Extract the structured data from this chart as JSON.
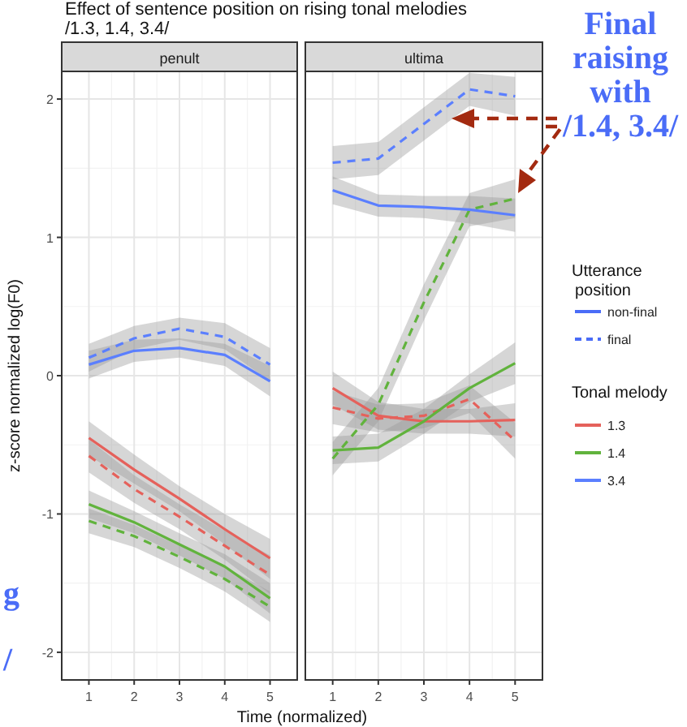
{
  "chart_data": [
    {
      "type": "line",
      "title": "penult",
      "xlabel": "Time (normalized)",
      "ylabel": "z-score normalized log(F0)",
      "annotations": [
        "Effect of sentence position on rising tonal melodies",
        "/1.3, 1.4, 3.4/",
        "g",
        "/"
      ],
      "x": [
        1,
        2,
        3,
        4,
        5
      ],
      "xlim": [
        0.4,
        5.6
      ],
      "xticks": [
        1,
        2,
        3,
        4,
        5
      ],
      "ylim": [
        -2.2,
        2.2
      ],
      "yticks": [
        -2,
        -1,
        0,
        1,
        2
      ],
      "grid": true,
      "legend": "right",
      "legend_title": "Tonal melody",
      "marker": "none",
      "series": [
        {
          "name": "1.3",
          "color": "#e5615b",
          "line_style": "solid",
          "values": [
            -0.45,
            -0.68,
            -0.89,
            -1.11,
            -1.32
          ],
          "lower": [
            -0.58,
            -0.78,
            -0.98,
            -1.22,
            -1.47
          ],
          "upper": [
            -0.33,
            -0.57,
            -0.8,
            -1.0,
            -1.18
          ]
        },
        {
          "color": "#e5615b",
          "line_style": "dashed",
          "values": [
            -0.58,
            -0.82,
            -1.02,
            -1.23,
            -1.44
          ],
          "lower": [
            -0.7,
            -0.92,
            -1.11,
            -1.33,
            -1.58
          ],
          "upper": [
            -0.46,
            -0.72,
            -0.93,
            -1.12,
            -1.3
          ]
        },
        {
          "name": "1.4",
          "color": "#61b33d",
          "line_style": "solid",
          "values": [
            -0.93,
            -1.06,
            -1.22,
            -1.38,
            -1.61
          ],
          "lower": [
            -1.03,
            -1.14,
            -1.3,
            -1.47,
            -1.72
          ],
          "upper": [
            -0.83,
            -0.98,
            -1.14,
            -1.29,
            -1.5
          ]
        },
        {
          "color": "#61b33d",
          "line_style": "dashed",
          "values": [
            -1.05,
            -1.16,
            -1.31,
            -1.47,
            -1.67
          ],
          "lower": [
            -1.14,
            -1.24,
            -1.39,
            -1.56,
            -1.78
          ],
          "upper": [
            -0.96,
            -1.08,
            -1.23,
            -1.38,
            -1.56
          ]
        },
        {
          "name": "3.4",
          "color": "#5b7fff",
          "line_style": "solid",
          "values": [
            0.08,
            0.18,
            0.2,
            0.15,
            -0.04
          ],
          "lower": [
            -0.02,
            0.1,
            0.13,
            0.07,
            -0.15
          ],
          "upper": [
            0.18,
            0.26,
            0.27,
            0.23,
            0.07
          ]
        },
        {
          "color": "#5b7fff",
          "line_style": "dashed",
          "values": [
            0.13,
            0.27,
            0.34,
            0.28,
            0.08
          ],
          "lower": [
            0.03,
            0.19,
            0.26,
            0.19,
            -0.04
          ],
          "upper": [
            0.23,
            0.36,
            0.42,
            0.38,
            0.2
          ]
        }
      ]
    },
    {
      "type": "line",
      "title": "ultima",
      "annotations": [
        "Final raising with /1.4, 3.4/",
        "Utterance position",
        "non-final",
        "final"
      ],
      "x": [
        1,
        2,
        3,
        4,
        5
      ],
      "xlim": [
        0.4,
        5.6
      ],
      "xticks": [
        1,
        2,
        3,
        4,
        5
      ],
      "ylim": [
        -2.2,
        2.2
      ],
      "yticks": [
        -2,
        -1,
        0,
        1,
        2
      ],
      "tick_labels": "x",
      "grid": true,
      "marker": "none",
      "series": [
        {
          "color": "#e5615b",
          "line_style": "solid",
          "values": [
            -0.09,
            -0.29,
            -0.33,
            -0.33,
            -0.32
          ],
          "lower": [
            -0.21,
            -0.39,
            -0.42,
            -0.42,
            -0.44
          ],
          "upper": [
            0.03,
            -0.19,
            -0.24,
            -0.24,
            -0.2
          ]
        },
        {
          "color": "#e5615b",
          "line_style": "dashed",
          "values": [
            -0.23,
            -0.31,
            -0.29,
            -0.17,
            -0.47
          ],
          "lower": [
            -0.35,
            -0.41,
            -0.38,
            -0.27,
            -0.6
          ],
          "upper": [
            -0.11,
            -0.21,
            -0.2,
            -0.07,
            -0.34
          ]
        },
        {
          "color": "#61b33d",
          "line_style": "solid",
          "values": [
            -0.54,
            -0.52,
            -0.33,
            -0.09,
            0.09
          ],
          "lower": [
            -0.64,
            -0.62,
            -0.42,
            -0.19,
            -0.06
          ],
          "upper": [
            -0.44,
            -0.42,
            -0.24,
            0.01,
            0.24
          ]
        },
        {
          "color": "#61b33d",
          "line_style": "dashed",
          "values": [
            -0.6,
            -0.21,
            0.53,
            1.2,
            1.28
          ],
          "lower": [
            -0.72,
            -0.33,
            0.4,
            1.08,
            1.14
          ],
          "upper": [
            -0.48,
            -0.09,
            0.66,
            1.32,
            1.42
          ]
        },
        {
          "color": "#5b7fff",
          "line_style": "solid",
          "values": [
            1.34,
            1.23,
            1.22,
            1.2,
            1.16
          ],
          "lower": [
            1.24,
            1.15,
            1.14,
            1.1,
            1.04
          ],
          "upper": [
            1.44,
            1.31,
            1.3,
            1.3,
            1.28
          ]
        },
        {
          "color": "#5b7fff",
          "line_style": "dashed",
          "values": [
            1.54,
            1.57,
            1.82,
            2.07,
            2.02
          ],
          "lower": [
            1.42,
            1.45,
            1.7,
            1.95,
            1.88
          ],
          "upper": [
            1.66,
            1.69,
            1.94,
            2.19,
            2.16
          ]
        }
      ]
    }
  ]
}
